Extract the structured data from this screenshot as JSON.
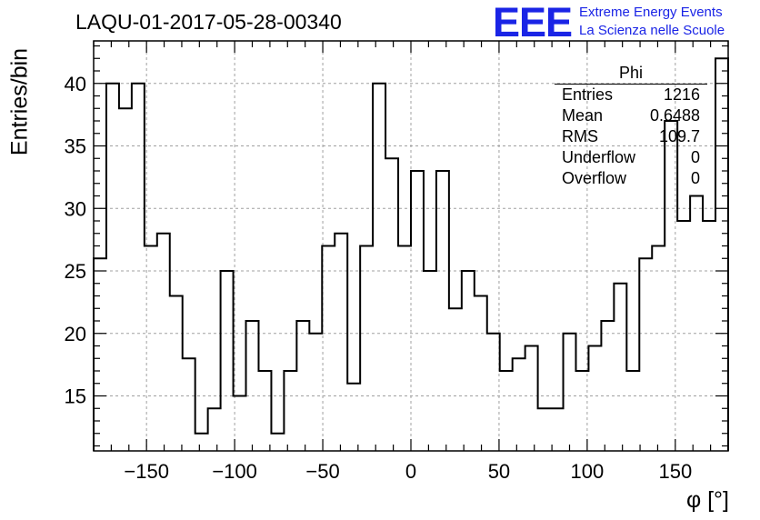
{
  "header": {
    "run_id": "LAQU-01-2017-05-28-00340",
    "logo_text": "EEE",
    "logo_line1": "Extreme Energy Events",
    "logo_line2": "La Scienza nelle Scuole",
    "logo_color": "#1a24e6"
  },
  "stats_box": {
    "title": "Phi",
    "rows": [
      {
        "label": "Entries",
        "value": "1216"
      },
      {
        "label": "Mean",
        "value": "0.6488"
      },
      {
        "label": "RMS",
        "value": "109.7"
      },
      {
        "label": "Underflow",
        "value": "0"
      },
      {
        "label": "Overflow",
        "value": "0"
      }
    ]
  },
  "chart_data": {
    "type": "bar",
    "style": "histogram-step",
    "title": "LAQU-01-2017-05-28-00340",
    "xlabel": "φ [°]",
    "ylabel": "Entries/bin",
    "xlim": [
      -180,
      180
    ],
    "ylim": [
      10.6,
      43.4
    ],
    "bin_width": 7.2,
    "x_ticks": [
      -150,
      -100,
      -50,
      0,
      50,
      100,
      150
    ],
    "x_tick_labels": [
      "−150",
      "−100",
      "−50",
      "0",
      "50",
      "100",
      "150"
    ],
    "y_ticks": [
      15,
      20,
      25,
      30,
      35,
      40
    ],
    "y_tick_labels": [
      "15",
      "20",
      "25",
      "30",
      "35",
      "40"
    ],
    "grid": true,
    "legend": "none",
    "values": [
      26,
      40,
      38,
      40,
      27,
      28,
      23,
      18,
      12,
      14,
      25,
      15,
      21,
      17,
      12,
      17,
      21,
      20,
      27,
      28,
      16,
      27,
      40,
      34,
      27,
      33,
      25,
      33,
      22,
      25,
      23,
      20,
      17,
      18,
      19,
      14,
      14,
      20,
      17,
      19,
      21,
      24,
      17,
      26,
      27,
      37,
      29,
      31,
      29,
      42
    ]
  }
}
